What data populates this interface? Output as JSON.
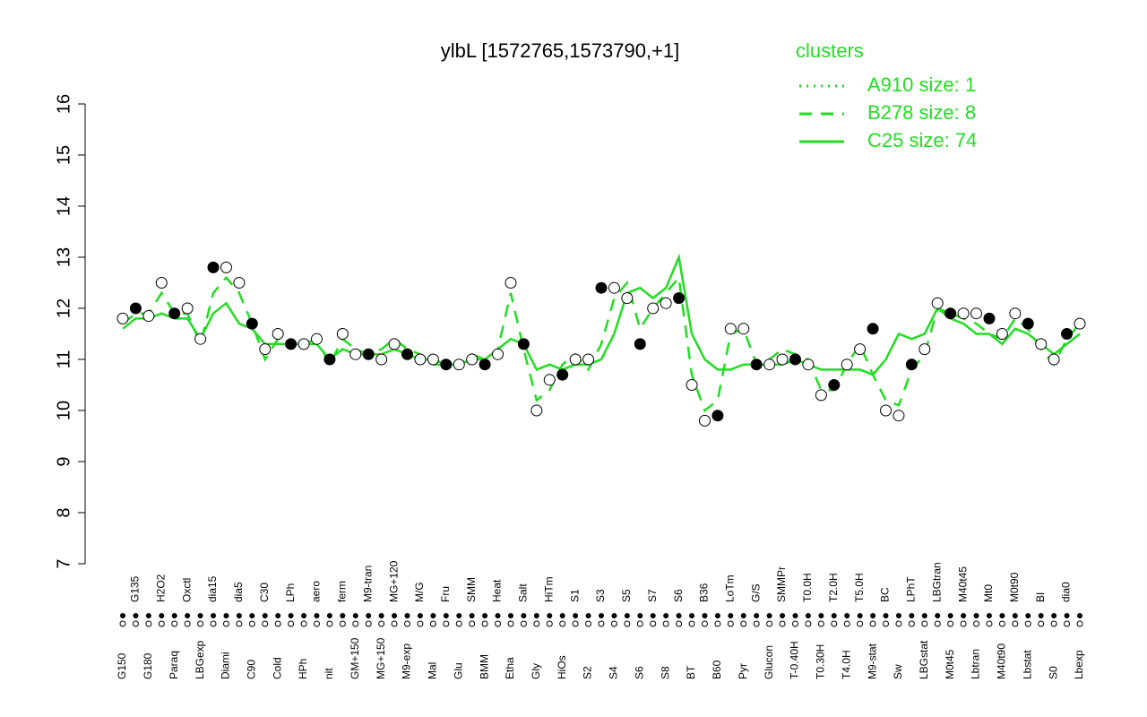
{
  "chart_data": {
    "type": "line",
    "title": "ylbL [1572765,1573790,+1]",
    "legend_title": "clusters",
    "legend_position": "top-right",
    "categories": [
      "G150",
      "G135",
      "G180",
      "H2O2",
      "Paraq",
      "Oxctl",
      "LBGexp",
      "dia15",
      "Diami",
      "dia5",
      "C90",
      "C30",
      "Cold",
      "LPh",
      "HPh",
      "aero",
      "nit",
      "ferm",
      "GM+150",
      "M9-tran",
      "MG+150",
      "MG+120",
      "M9-exp",
      "M/G",
      "Mal",
      "Fru",
      "Glu",
      "SMM",
      "BMM",
      "Heat",
      "Etha",
      "Salt",
      "Gly",
      "HiTm",
      "HiOs",
      "S1",
      "S2",
      "S3",
      "S4",
      "S5",
      "S6",
      "S7",
      "S8",
      "S6",
      "BT",
      "B36",
      "B60",
      "LoTm",
      "Pyr",
      "G/S",
      "Glucon",
      "SMMPr",
      "T-0.40H",
      "T0.0H",
      "T0.30H",
      "T2.0H",
      "T4.0H",
      "T5.0H",
      "M9-stat",
      "BC",
      "Sw",
      "LPhT",
      "LBGstat",
      "LBGtran",
      "M0t45",
      "M40t45",
      "Lbtran",
      "Mt0",
      "M40t90",
      "M0t90",
      "Lbstat",
      "BI",
      "S0",
      "dia0",
      "Lbexp"
    ],
    "values": [
      11.8,
      12.0,
      11.85,
      12.5,
      11.9,
      12.0,
      11.4,
      12.8,
      12.8,
      12.5,
      11.7,
      11.2,
      11.5,
      11.3,
      11.3,
      11.4,
      11.0,
      11.5,
      11.1,
      11.1,
      11.0,
      11.3,
      11.1,
      11.0,
      11.0,
      10.9,
      10.9,
      11.0,
      10.9,
      11.1,
      12.5,
      11.3,
      10.0,
      10.6,
      10.7,
      11.0,
      11.0,
      12.4,
      12.4,
      12.2,
      11.3,
      12.0,
      12.1,
      12.2,
      10.5,
      9.8,
      9.9,
      11.6,
      11.6,
      10.9,
      10.9,
      11.0,
      11.0,
      10.9,
      10.3,
      10.5,
      10.9,
      11.2,
      11.6,
      10.0,
      9.9,
      10.9,
      11.2,
      12.1,
      11.9,
      11.9,
      11.9,
      11.8,
      11.5,
      11.9,
      11.7,
      11.3,
      11.0,
      11.5,
      11.7
    ],
    "series": [
      {
        "name": "A910 size: 1",
        "color": "#22dd22",
        "dash": "dotted",
        "values": [
          null,
          null,
          null,
          null,
          null,
          null,
          null,
          null,
          null,
          null,
          null,
          null,
          null,
          null,
          null,
          null,
          null,
          null,
          null,
          null,
          null,
          null,
          null,
          null,
          null,
          null,
          null,
          null,
          null,
          null,
          null,
          null,
          null,
          null,
          null,
          null,
          null,
          null,
          null,
          null,
          null,
          null,
          null,
          null,
          null,
          null,
          null,
          null,
          null,
          null,
          null,
          null,
          null,
          null,
          null,
          null,
          null,
          null,
          null,
          null,
          null,
          null,
          null,
          null,
          null,
          null,
          null,
          null,
          null,
          null,
          null,
          null,
          null,
          null,
          null
        ]
      },
      {
        "name": "B278 size: 8",
        "color": "#22dd22",
        "dash": "dashed",
        "values": [
          11.7,
          11.9,
          11.9,
          12.3,
          11.9,
          11.9,
          11.3,
          12.3,
          12.6,
          12.3,
          11.7,
          11.0,
          11.4,
          11.3,
          11.3,
          11.4,
          10.9,
          11.4,
          11.2,
          11.1,
          11.2,
          11.4,
          11.2,
          11.1,
          10.9,
          10.9,
          10.9,
          11.1,
          11.0,
          11.2,
          12.3,
          11.2,
          10.2,
          10.4,
          10.9,
          11.1,
          10.8,
          11.3,
          12.2,
          12.5,
          11.6,
          12.0,
          12.3,
          12.6,
          10.7,
          10.0,
          10.2,
          11.5,
          11.6,
          10.9,
          11.0,
          11.2,
          11.1,
          11.0,
          10.4,
          10.4,
          10.9,
          11.3,
          10.7,
          10.2,
          10.1,
          10.8,
          11.1,
          12.0,
          11.9,
          11.8,
          11.7,
          11.5,
          11.4,
          11.8,
          11.6,
          11.2,
          10.9,
          11.4,
          11.7
        ]
      },
      {
        "name": "C25 size: 74",
        "color": "#22dd22",
        "dash": "solid",
        "values": [
          11.6,
          11.8,
          11.8,
          11.9,
          11.8,
          11.8,
          11.4,
          11.9,
          12.1,
          11.7,
          11.6,
          11.3,
          11.3,
          11.3,
          11.3,
          11.3,
          11.0,
          11.2,
          11.1,
          11.1,
          11.1,
          11.2,
          11.1,
          11.0,
          11.0,
          10.9,
          10.9,
          11.0,
          11.0,
          11.2,
          11.4,
          11.3,
          10.8,
          10.9,
          10.8,
          10.9,
          10.9,
          11.0,
          11.5,
          12.3,
          12.4,
          12.2,
          12.4,
          13.0,
          11.5,
          11.0,
          10.8,
          10.8,
          10.9,
          10.9,
          10.9,
          10.9,
          11.0,
          10.9,
          10.8,
          10.8,
          10.8,
          10.8,
          10.7,
          11.0,
          11.5,
          11.4,
          11.5,
          12.0,
          11.8,
          11.7,
          11.5,
          11.5,
          11.3,
          11.6,
          11.5,
          11.3,
          11.1,
          11.3,
          11.5
        ]
      }
    ],
    "ylim": [
      7,
      16
    ],
    "yticks": [
      7,
      8,
      9,
      10,
      11,
      12,
      13,
      14,
      15,
      16
    ]
  }
}
